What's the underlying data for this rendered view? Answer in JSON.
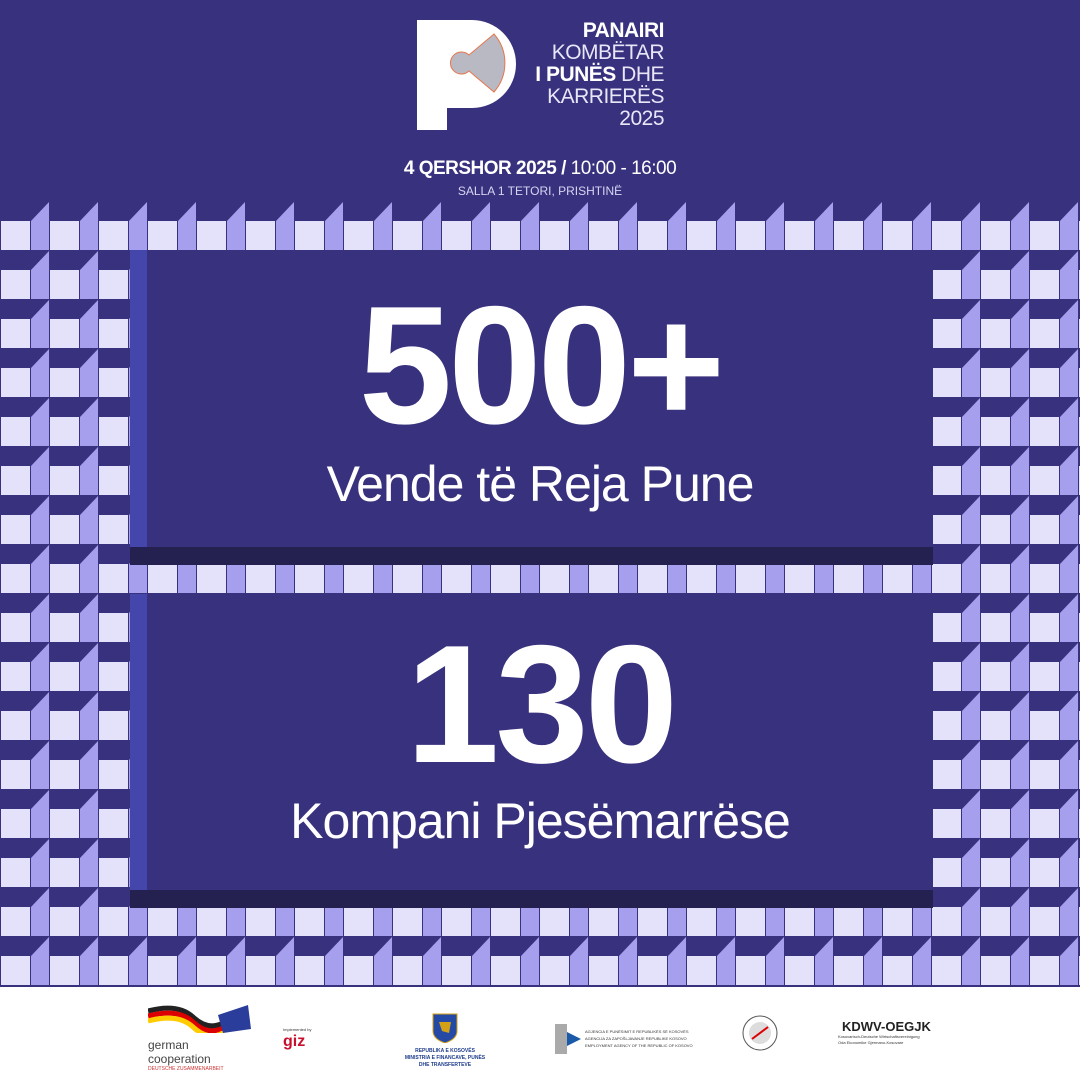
{
  "header": {
    "title_lines": [
      "PANAIRI",
      "KOMBËTAR",
      "I PUNËS",
      "DHE",
      "KARRIERËS",
      "2025"
    ],
    "date": "4 QERSHOR 2025 /",
    "time": "10:00 - 16:00",
    "venue": "SALLA 1 TETORI, PRISHTINË"
  },
  "stats": [
    {
      "value": "500+",
      "label": "Vende të Reja Pune"
    },
    {
      "value": "130",
      "label": "Kompani Pjesëmarrëse"
    }
  ],
  "colors": {
    "background": "#38317e",
    "tile_light": "#e4e2fb",
    "tile_side": "#a59fee",
    "bevel": "#4446ab",
    "shade": "#24204f"
  },
  "footer": {
    "german": [
      "german",
      "cooperation",
      "DEUTSCHE ZUSAMMENARBEIT"
    ],
    "giz": {
      "label": "Implemented by",
      "name": "giz"
    },
    "ministry": [
      "REPUBLIKA E KOSOVËS",
      "MINISTRIA E FINANCAVE, PUNËS",
      "DHE TRANSFERTEVE"
    ],
    "agency": [
      "AGJENCIA E PUNËSIMIT E REPUBLIKËS SË KOSOVËS",
      "AGENCIJA ZA ZAPOŠLJAVANJE REPUBLIKE KOSOVO",
      "EMPLOYMENT AGENCY OF THE REPUBLIC OF KOSOVO"
    ],
    "kdwv": {
      "name": "KDWV-OEGJK",
      "lines": [
        "Kosovarisch-Deutsche Wirtschaftsvereinigung",
        "Oda Ekonomike Gjermano-Kosovare"
      ]
    }
  }
}
